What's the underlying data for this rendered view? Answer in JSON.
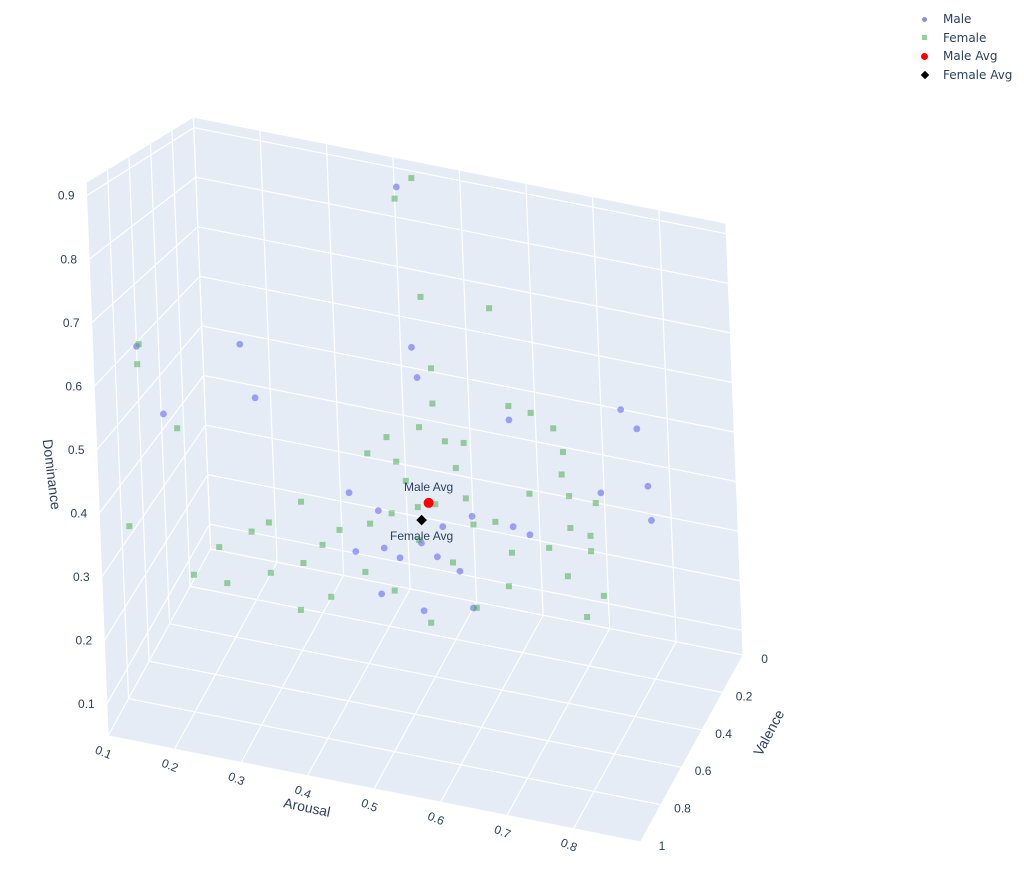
{
  "colors": {
    "male": "#7b7cf6",
    "female": "#6cc46c",
    "male_avg": "#ff0000",
    "female_avg": "#000000",
    "pane": "#e5ecf6",
    "grid": "#ffffff",
    "text": "#2a3f5f"
  },
  "legend": {
    "items": [
      {
        "label": "Male",
        "symbol": "circle",
        "color": "#8a8bf2"
      },
      {
        "label": "Female",
        "symbol": "square",
        "color": "#97d197"
      },
      {
        "label": "Male Avg",
        "symbol": "circle-big",
        "color": "#ff0000"
      },
      {
        "label": "Female Avg",
        "symbol": "diamond",
        "color": "#000000"
      }
    ]
  },
  "chart_data": {
    "type": "scatter3d",
    "title": "",
    "axes": {
      "x": {
        "label": "Arousal",
        "range": [
          0.1,
          0.9
        ],
        "ticks": [
          0.1,
          0.2,
          0.3,
          0.4,
          0.5,
          0.6,
          0.7,
          0.8
        ],
        "tick_labels": [
          "0.1",
          "0.2",
          "0.3",
          "0.4",
          "0.5",
          "0.6",
          "0.7",
          "0.8"
        ]
      },
      "y": {
        "label": "Valence",
        "range": [
          0,
          1
        ],
        "ticks": [
          0,
          0.2,
          0.4,
          0.6,
          0.8,
          1
        ],
        "tick_labels": [
          "0",
          "0.2",
          "0.4",
          "0.6",
          "0.8",
          "1"
        ]
      },
      "z": {
        "label": "Dominance",
        "range": [
          0.05,
          0.92
        ],
        "ticks": [
          0.1,
          0.2,
          0.3,
          0.4,
          0.5,
          0.6,
          0.7,
          0.8,
          0.9
        ],
        "tick_labels": [
          "0.1",
          "0.2",
          "0.3",
          "0.4",
          "0.5",
          "0.6",
          "0.7",
          "0.8",
          "0.9"
        ]
      }
    },
    "legend_position": "top-right",
    "grid": true,
    "series": [
      {
        "name": "Male",
        "marker": "circle",
        "points": [
          [
            0.42,
            0.1,
            0.88
          ],
          [
            0.12,
            0.72,
            0.62
          ],
          [
            0.46,
            0.26,
            0.61
          ],
          [
            0.24,
            0.5,
            0.61
          ],
          [
            0.47,
            0.28,
            0.56
          ],
          [
            0.26,
            0.5,
            0.52
          ],
          [
            0.14,
            0.62,
            0.49
          ],
          [
            0.61,
            0.3,
            0.52
          ],
          [
            0.66,
            0.6,
            0.41
          ],
          [
            0.76,
            0.18,
            0.55
          ],
          [
            0.79,
            0.22,
            0.53
          ],
          [
            0.77,
            0.45,
            0.46
          ],
          [
            0.83,
            0.38,
            0.47
          ],
          [
            0.84,
            0.42,
            0.42
          ],
          [
            0.59,
            0.55,
            0.4
          ],
          [
            0.52,
            0.6,
            0.35
          ],
          [
            0.58,
            0.62,
            0.32
          ],
          [
            0.5,
            0.68,
            0.34
          ],
          [
            0.56,
            0.7,
            0.36
          ],
          [
            0.62,
            0.75,
            0.3
          ],
          [
            0.47,
            0.64,
            0.34
          ],
          [
            0.45,
            0.56,
            0.38
          ],
          [
            0.4,
            0.52,
            0.39
          ],
          [
            0.43,
            0.66,
            0.33
          ],
          [
            0.55,
            0.58,
            0.38
          ],
          [
            0.69,
            0.63,
            0.41
          ],
          [
            0.54,
            0.72,
            0.27
          ],
          [
            0.48,
            0.74,
            0.29
          ]
        ]
      },
      {
        "name": "Female",
        "marker": "square",
        "points": [
          [
            0.44,
            0.08,
            0.9
          ],
          [
            0.42,
            0.12,
            0.86
          ],
          [
            0.12,
            0.7,
            0.62
          ],
          [
            0.12,
            0.72,
            0.59
          ],
          [
            0.12,
            0.85,
            0.35
          ],
          [
            0.16,
            0.62,
            0.47
          ],
          [
            0.47,
            0.22,
            0.7
          ],
          [
            0.57,
            0.2,
            0.7
          ],
          [
            0.49,
            0.27,
            0.58
          ],
          [
            0.5,
            0.33,
            0.53
          ],
          [
            0.49,
            0.4,
            0.5
          ],
          [
            0.52,
            0.35,
            0.47
          ],
          [
            0.54,
            0.3,
            0.46
          ],
          [
            0.6,
            0.24,
            0.53
          ],
          [
            0.63,
            0.22,
            0.52
          ],
          [
            0.67,
            0.26,
            0.51
          ],
          [
            0.69,
            0.3,
            0.48
          ],
          [
            0.7,
            0.38,
            0.46
          ],
          [
            0.72,
            0.44,
            0.44
          ],
          [
            0.75,
            0.38,
            0.42
          ],
          [
            0.73,
            0.5,
            0.4
          ],
          [
            0.77,
            0.56,
            0.41
          ],
          [
            0.78,
            0.62,
            0.4
          ],
          [
            0.81,
            0.7,
            0.35
          ],
          [
            0.66,
            0.62,
            0.37
          ],
          [
            0.6,
            0.6,
            0.4
          ],
          [
            0.58,
            0.68,
            0.35
          ],
          [
            0.52,
            0.62,
            0.36
          ],
          [
            0.47,
            0.56,
            0.38
          ],
          [
            0.44,
            0.58,
            0.36
          ],
          [
            0.4,
            0.62,
            0.35
          ],
          [
            0.38,
            0.66,
            0.33
          ],
          [
            0.34,
            0.6,
            0.38
          ],
          [
            0.3,
            0.66,
            0.35
          ],
          [
            0.28,
            0.7,
            0.34
          ],
          [
            0.24,
            0.76,
            0.32
          ],
          [
            0.36,
            0.72,
            0.31
          ],
          [
            0.45,
            0.7,
            0.31
          ],
          [
            0.5,
            0.74,
            0.3
          ],
          [
            0.56,
            0.78,
            0.27
          ],
          [
            0.48,
            0.48,
            0.42
          ],
          [
            0.46,
            0.44,
            0.44
          ],
          [
            0.42,
            0.46,
            0.45
          ],
          [
            0.44,
            0.4,
            0.47
          ],
          [
            0.53,
            0.52,
            0.4
          ],
          [
            0.57,
            0.48,
            0.41
          ],
          [
            0.62,
            0.52,
            0.39
          ],
          [
            0.66,
            0.44,
            0.43
          ],
          [
            0.71,
            0.58,
            0.38
          ],
          [
            0.75,
            0.66,
            0.36
          ],
          [
            0.79,
            0.74,
            0.32
          ],
          [
            0.67,
            0.72,
            0.34
          ],
          [
            0.63,
            0.78,
            0.31
          ],
          [
            0.41,
            0.78,
            0.28
          ],
          [
            0.37,
            0.82,
            0.26
          ],
          [
            0.32,
            0.78,
            0.3
          ],
          [
            0.26,
            0.82,
            0.28
          ],
          [
            0.22,
            0.88,
            0.3
          ],
          [
            0.55,
            0.44,
            0.45
          ],
          [
            0.51,
            0.56,
            0.4
          ]
        ]
      },
      {
        "name": "Male Avg",
        "marker": "circle",
        "points": [
          [
            0.52,
            0.52,
            0.4
          ]
        ],
        "label": "Male Avg"
      },
      {
        "name": "Female Avg",
        "marker": "diamond",
        "points": [
          [
            0.51,
            0.53,
            0.37
          ]
        ],
        "label": "Female Avg"
      }
    ]
  }
}
